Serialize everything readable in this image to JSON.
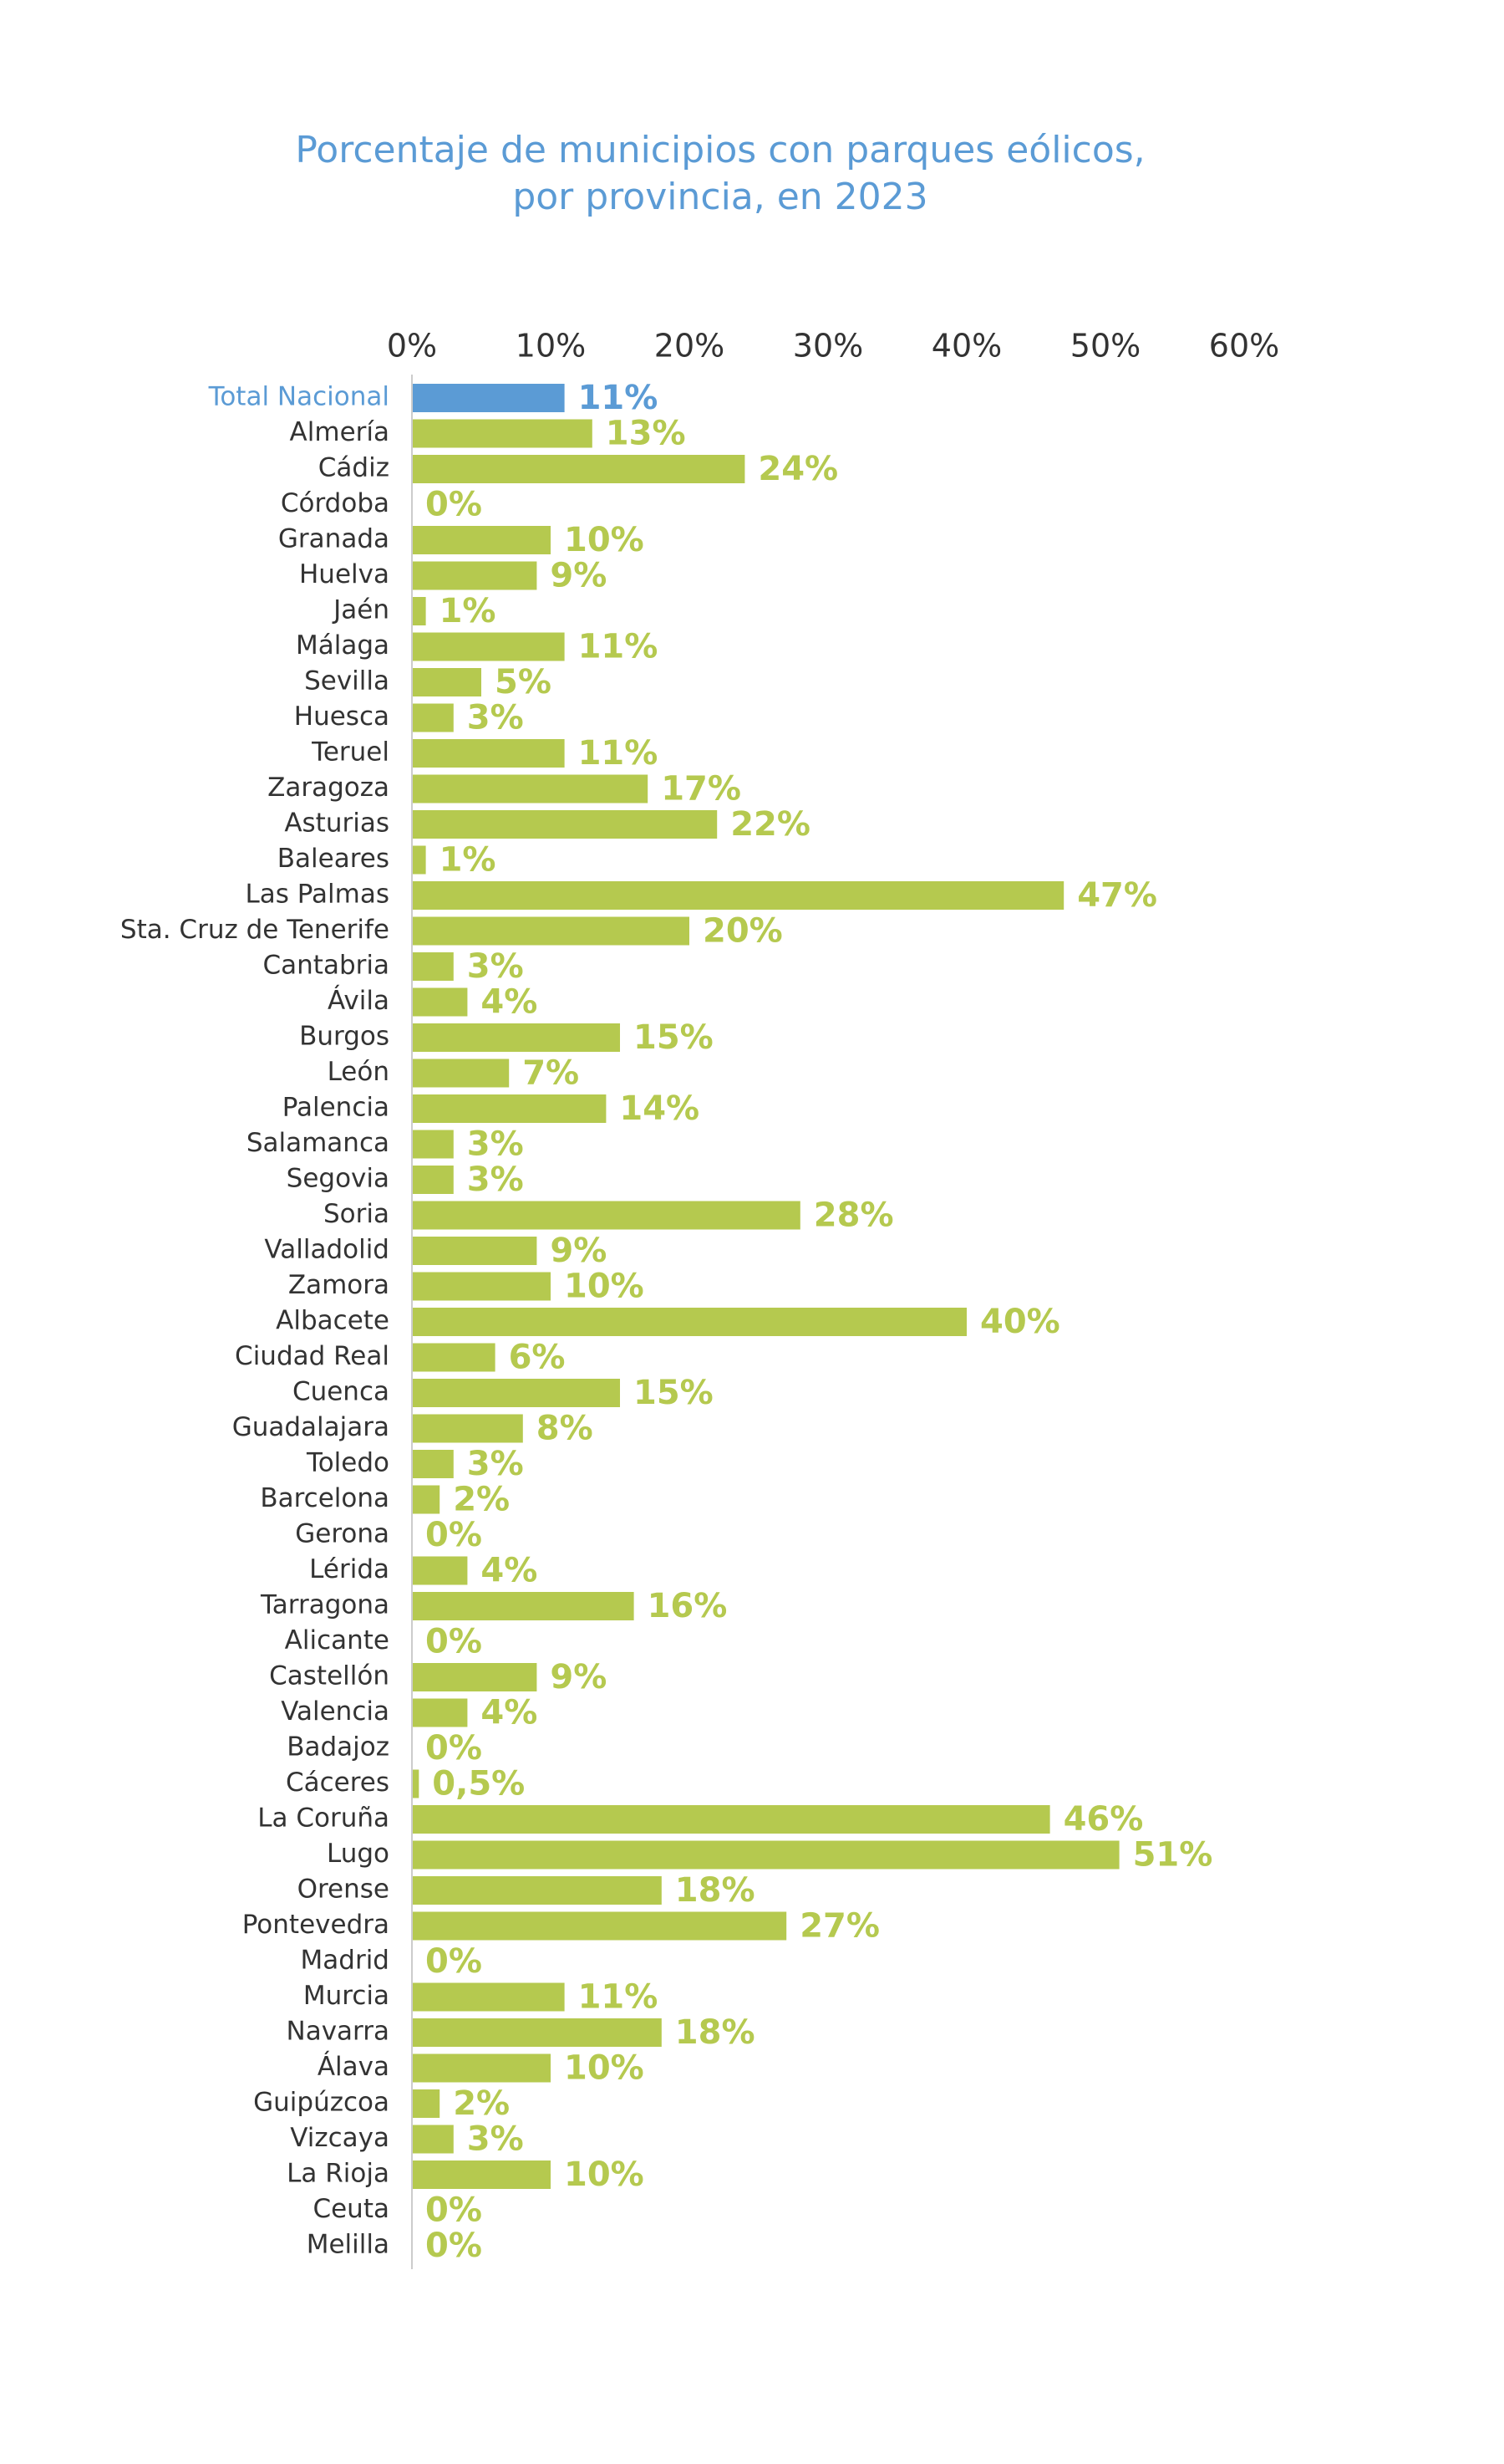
{
  "chart_data": {
    "type": "hbar",
    "title": [
      "Porcentaje de municipios con parques eólicos,",
      "por provincia, en 2023"
    ],
    "categories": [
      "Total Nacional",
      "Almería",
      "Cádiz",
      "Córdoba",
      "Granada",
      "Huelva",
      "Jaén",
      "Málaga",
      "Sevilla",
      "Huesca",
      "Teruel",
      "Zaragoza",
      "Asturias",
      "Baleares",
      "Las Palmas",
      "Sta. Cruz de Tenerife",
      "Cantabria",
      "Ávila",
      "Burgos",
      "León",
      "Palencia",
      "Salamanca",
      "Segovia",
      "Soria",
      "Valladolid",
      "Zamora",
      "Albacete",
      "Ciudad Real",
      "Cuenca",
      "Guadalajara",
      "Toledo",
      "Barcelona",
      "Gerona",
      "Lérida",
      "Tarragona",
      "Alicante",
      "Castellón",
      "Valencia",
      "Badajoz",
      "Cáceres",
      "La Coruña",
      "Lugo",
      "Orense",
      "Pontevedra",
      "Madrid",
      "Murcia",
      "Navarra",
      "Álava",
      "Guipúzcoa",
      "Vizcaya",
      "La Rioja",
      "Ceuta",
      "Melilla"
    ],
    "values": [
      11,
      13,
      24,
      0,
      10,
      9,
      1,
      11,
      5,
      3,
      11,
      17,
      22,
      1,
      47,
      20,
      3,
      4,
      15,
      7,
      14,
      3,
      3,
      28,
      9,
      10,
      40,
      6,
      15,
      8,
      3,
      2,
      0,
      4,
      16,
      0,
      9,
      4,
      0,
      0.5,
      46,
      51,
      18,
      27,
      0,
      11,
      18,
      10,
      2,
      3,
      10,
      0,
      0
    ],
    "value_labels": [
      "11%",
      "13%",
      "24%",
      "0%",
      "10%",
      "9%",
      "1%",
      "11%",
      "5%",
      "3%",
      "11%",
      "17%",
      "22%",
      "1%",
      "47%",
      "20%",
      "3%",
      "4%",
      "15%",
      "7%",
      "14%",
      "3%",
      "3%",
      "28%",
      "9%",
      "10%",
      "40%",
      "6%",
      "15%",
      "8%",
      "3%",
      "2%",
      "0%",
      "4%",
      "16%",
      "0%",
      "9%",
      "4%",
      "0%",
      "0,5%",
      "46%",
      "51%",
      "18%",
      "27%",
      "0%",
      "11%",
      "18%",
      "10%",
      "2%",
      "3%",
      "10%",
      "0%",
      "0%"
    ],
    "color": "#b5c94f",
    "colors": [
      "#5b9bd5",
      "#b5c94f",
      "#b5c94f",
      "#b5c94f",
      "#b5c94f",
      "#b5c94f",
      "#b5c94f",
      "#b5c94f",
      "#b5c94f",
      "#b5c94f",
      "#b5c94f",
      "#b5c94f",
      "#b5c94f",
      "#b5c94f",
      "#b5c94f",
      "#b5c94f",
      "#b5c94f",
      "#b5c94f",
      "#b5c94f",
      "#b5c94f",
      "#b5c94f",
      "#b5c94f",
      "#b5c94f",
      "#b5c94f",
      "#b5c94f",
      "#b5c94f",
      "#b5c94f",
      "#b5c94f",
      "#b5c94f",
      "#b5c94f",
      "#b5c94f",
      "#b5c94f",
      "#b5c94f",
      "#b5c94f",
      "#b5c94f",
      "#b5c94f",
      "#b5c94f",
      "#b5c94f",
      "#b5c94f",
      "#b5c94f",
      "#b5c94f",
      "#b5c94f",
      "#b5c94f",
      "#b5c94f",
      "#b5c94f",
      "#b5c94f",
      "#b5c94f",
      "#b5c94f",
      "#b5c94f",
      "#b5c94f",
      "#b5c94f",
      "#b5c94f",
      "#b5c94f"
    ],
    "xlim": [
      0,
      60
    ],
    "xticks": [
      {
        "value": 0,
        "label": "0%"
      },
      {
        "value": 10,
        "label": "10%"
      },
      {
        "value": 20,
        "label": "20%"
      },
      {
        "value": 30,
        "label": "30%"
      },
      {
        "value": 40,
        "label": "40%"
      },
      {
        "value": 50,
        "label": "50%"
      },
      {
        "value": 60,
        "label": "60%"
      }
    ],
    "grid": false
  }
}
